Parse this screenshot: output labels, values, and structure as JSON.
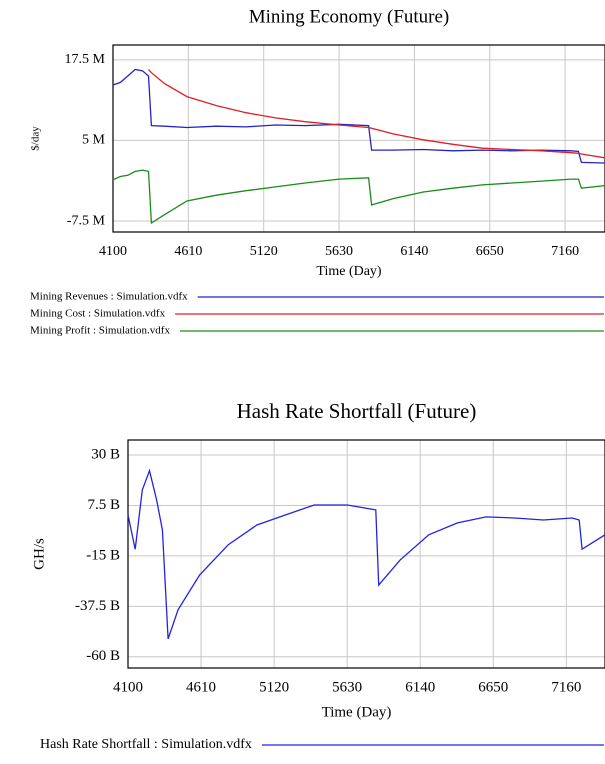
{
  "chart_data": [
    {
      "type": "line",
      "title": "Mining Economy (Future)",
      "x_label": "Time (Day)",
      "y_label": "$/day",
      "x": [
        4100,
        4150,
        4200,
        4250,
        4300,
        4340,
        4360,
        4450,
        4600,
        4800,
        5000,
        5200,
        5400,
        5630,
        5830,
        5850,
        6000,
        6200,
        6400,
        6600,
        6800,
        7000,
        7200,
        7250,
        7270,
        7430
      ],
      "xlim": [
        4100,
        7430
      ],
      "xticks": [
        4100,
        4610,
        5120,
        5630,
        6140,
        6650,
        7160
      ],
      "ylim": [
        -9.2,
        19.8
      ],
      "yticks": [
        {
          "value": -7.5,
          "label": "-7.5 M"
        },
        {
          "value": 5,
          "label": "5 M"
        },
        {
          "value": 17.5,
          "label": "17.5 M"
        }
      ],
      "grid": true,
      "series": [
        {
          "name": "Mining Revenues : Simulation.vdfx",
          "color": "#2323c8",
          "values": [
            13.6,
            14,
            15,
            16,
            15.8,
            15,
            7.3,
            7.2,
            7.0,
            7.2,
            7.1,
            7.4,
            7.3,
            7.5,
            7.3,
            3.5,
            3.5,
            3.6,
            3.4,
            3.5,
            3.4,
            3.5,
            3.4,
            3.3,
            1.6,
            1.5
          ]
        },
        {
          "name": "Mining Cost : Simulation.vdfx",
          "color": "#e02020",
          "values": [
            null,
            null,
            null,
            null,
            null,
            16,
            15.5,
            13.8,
            11.8,
            10.4,
            9.3,
            8.5,
            7.9,
            7.4,
            7.0,
            6.9,
            6.0,
            5.1,
            4.4,
            3.8,
            3.6,
            3.4,
            3.1,
            3.0,
            2.9,
            2.3
          ]
        },
        {
          "name": "Mining Profit : Simulation.vdfx",
          "color": "#1a8c1a",
          "values": [
            -1.1,
            -0.6,
            -0.4,
            0.2,
            0.4,
            0.2,
            -7.8,
            -6.5,
            -4.4,
            -3.5,
            -2.8,
            -2.2,
            -1.6,
            -1.0,
            -0.8,
            -5.0,
            -4.0,
            -3.0,
            -2.4,
            -1.9,
            -1.6,
            -1.3,
            -1.0,
            -1.0,
            -2.4,
            -2.0
          ]
        }
      ]
    },
    {
      "type": "line",
      "title": "Hash Rate Shortfall (Future)",
      "x_label": "Time (Day)",
      "y_label": "GH/s",
      "x": [
        4100,
        4150,
        4200,
        4250,
        4300,
        4340,
        4380,
        4450,
        4600,
        4800,
        5000,
        5200,
        5400,
        5630,
        5830,
        5850,
        6000,
        6200,
        6400,
        6600,
        6800,
        7000,
        7200,
        7250,
        7270,
        7430
      ],
      "xlim": [
        4100,
        7430
      ],
      "xticks": [
        4100,
        4610,
        5120,
        5630,
        6140,
        6650,
        7160
      ],
      "ylim": [
        -65,
        36.7
      ],
      "yticks": [
        {
          "value": -60,
          "label": "-60 B"
        },
        {
          "value": -37.5,
          "label": "-37.5 B"
        },
        {
          "value": -15,
          "label": "-15 B"
        },
        {
          "value": 7.5,
          "label": "7.5 B"
        },
        {
          "value": 30,
          "label": "30 B"
        }
      ],
      "grid": true,
      "series": [
        {
          "name": "Hash Rate Shortfall : Simulation.vdfx",
          "color": "#2323e0",
          "values": [
            3.3,
            -12,
            14.4,
            23,
            10,
            -3.4,
            -52,
            -39,
            -23.5,
            -10,
            -1.2,
            3.3,
            7.7,
            7.7,
            5.5,
            -28,
            -16.8,
            -5.6,
            -0.3,
            2.4,
            1.9,
            1,
            1.9,
            1,
            -12,
            -5.6
          ]
        }
      ]
    }
  ]
}
